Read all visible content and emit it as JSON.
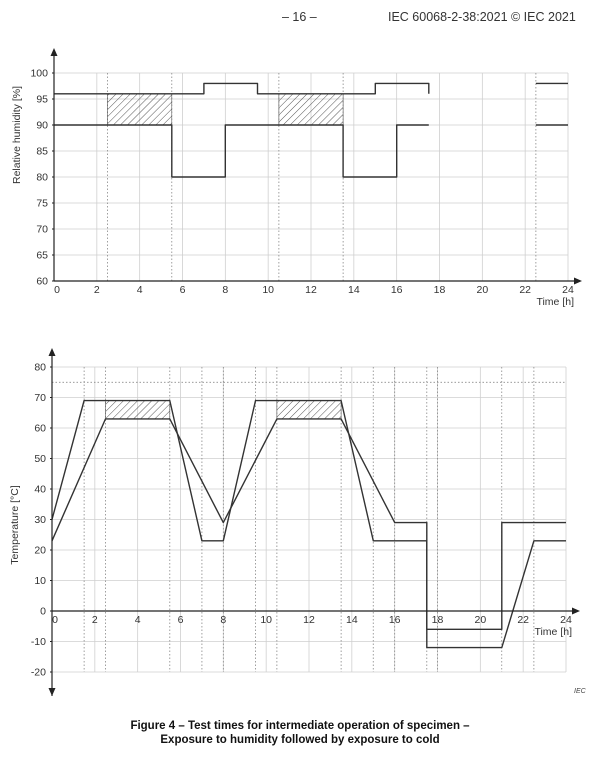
{
  "header": {
    "page_number": "– 16 –",
    "standard": "IEC 60068-2-38:2021 © IEC 2021"
  },
  "iec_mark": "IEC",
  "caption": {
    "line1": "Figure 4 – Test times for intermediate operation of specimen –",
    "line2": "Exposure to humidity followed by exposure to cold"
  },
  "chart_data": [
    {
      "type": "line",
      "xlabel": "Time [h]",
      "ylabel": "Relative humidity [%]",
      "xlim": [
        0,
        24
      ],
      "ylim": [
        60,
        100
      ],
      "xticks": [
        0,
        2,
        4,
        6,
        8,
        10,
        12,
        14,
        16,
        18,
        20,
        22,
        24
      ],
      "yticks": [
        60,
        65,
        70,
        75,
        80,
        85,
        90,
        95,
        100
      ],
      "grid": true,
      "vertical_markers": [
        2.5,
        5.5,
        10.5,
        13.5,
        22.5
      ],
      "series": [
        {
          "points": [
            [
              0,
              96
            ],
            [
              7,
              96
            ],
            [
              7,
              98
            ],
            [
              9.5,
              98
            ],
            [
              9.5,
              96
            ],
            [
              15,
              96
            ],
            [
              15,
              98
            ],
            [
              17.5,
              98
            ],
            [
              17.5,
              96
            ]
          ]
        },
        {
          "points": [
            [
              0,
              90
            ],
            [
              5.5,
              90
            ],
            [
              5.5,
              80
            ],
            [
              8,
              80
            ],
            [
              8,
              90
            ],
            [
              13.5,
              90
            ],
            [
              13.5,
              80
            ],
            [
              16,
              80
            ],
            [
              16,
              90
            ],
            [
              17.5,
              90
            ]
          ]
        },
        {
          "points": [
            [
              22.5,
              98
            ],
            [
              24,
              98
            ]
          ]
        },
        {
          "points": [
            [
              22.5,
              90
            ],
            [
              24,
              90
            ]
          ]
        }
      ],
      "hatched_regions": [
        {
          "x": [
            2.5,
            5.5
          ],
          "y": [
            90,
            96
          ]
        },
        {
          "x": [
            10.5,
            13.5
          ],
          "y": [
            90,
            96
          ]
        }
      ]
    },
    {
      "type": "line",
      "xlabel": "Time [h]",
      "ylabel": "Temperature [°C]",
      "xlim": [
        0,
        24
      ],
      "ylim": [
        -20,
        80
      ],
      "xticks": [
        0,
        2,
        4,
        6,
        8,
        10,
        12,
        14,
        16,
        18,
        20,
        22,
        24
      ],
      "yticks": [
        -20,
        -10,
        0,
        10,
        20,
        30,
        40,
        50,
        60,
        70,
        80
      ],
      "grid": true,
      "dotted_reference_y": 75,
      "vertical_markers": [
        1.5,
        2.5,
        5.5,
        7,
        8,
        9.5,
        10.5,
        13.5,
        15,
        16,
        17.5,
        18,
        21,
        22.5
      ],
      "series": [
        {
          "points": [
            [
              0,
              23
            ],
            [
              2.5,
              63
            ],
            [
              5.5,
              63
            ],
            [
              8,
              29
            ],
            [
              10.5,
              63
            ],
            [
              13.5,
              63
            ],
            [
              16,
              29
            ],
            [
              17.5,
              29
            ],
            [
              17.5,
              -6
            ],
            [
              21,
              -6
            ],
            [
              21,
              29
            ],
            [
              24,
              29
            ]
          ]
        },
        {
          "points": [
            [
              0,
              30
            ],
            [
              1.5,
              69
            ],
            [
              5.5,
              69
            ],
            [
              7,
              23
            ],
            [
              8,
              23
            ],
            [
              9.5,
              69
            ],
            [
              13.5,
              69
            ],
            [
              15,
              23
            ],
            [
              17.5,
              23
            ],
            [
              17.5,
              -12
            ],
            [
              21,
              -12
            ],
            [
              22.5,
              23
            ],
            [
              24,
              23
            ]
          ]
        }
      ],
      "hatched_regions": [
        {
          "x": [
            2.5,
            5.5
          ],
          "y": [
            63,
            69
          ]
        },
        {
          "x": [
            10.5,
            13.5
          ],
          "y": [
            63,
            69
          ]
        }
      ]
    }
  ]
}
